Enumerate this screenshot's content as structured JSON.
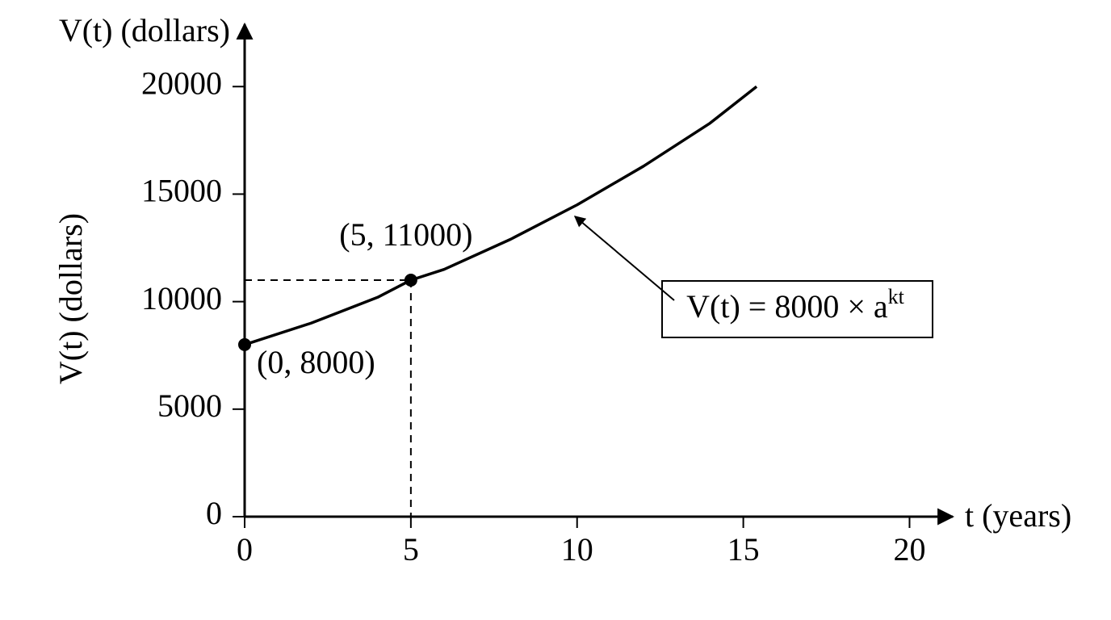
{
  "chart_data": {
    "type": "line",
    "y_axis_label_top": "V(t) (dollars)",
    "y_axis_label": "V(t) (dollars)",
    "x_axis_label": "t (years)",
    "x": [
      0,
      2,
      4,
      5,
      6,
      8,
      10,
      12,
      14,
      15.4
    ],
    "values": [
      8000,
      9000,
      10200,
      11000,
      11500,
      12900,
      14500,
      16300,
      18300,
      20000
    ],
    "color": "#000000",
    "points": {
      "x": [
        0,
        5
      ],
      "values": [
        8000,
        11000
      ],
      "labels": [
        "(0, 8000)",
        "(5, 11000)"
      ]
    },
    "annotation": {
      "base": "V(t) = 8000 × a",
      "exponent": "kt"
    },
    "xlim": [
      0,
      21.3
    ],
    "ylim": [
      0,
      22900
    ],
    "xticks": [
      0,
      5,
      10,
      15,
      20
    ],
    "yticks": [
      0,
      5000,
      10000,
      15000,
      20000
    ],
    "grid": false
  }
}
